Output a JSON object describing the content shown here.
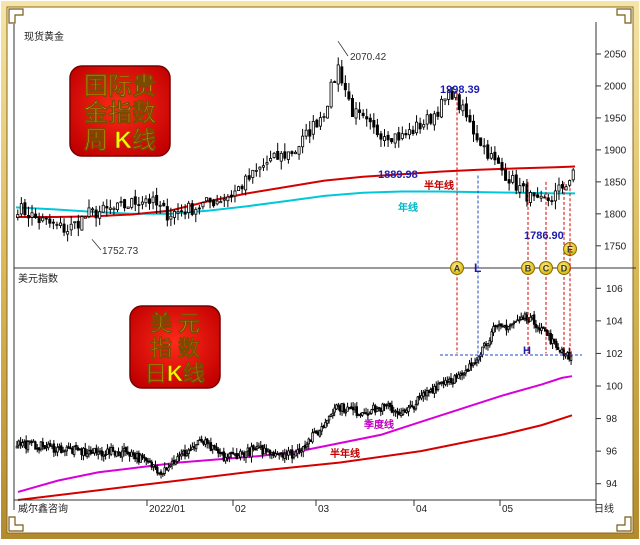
{
  "chart_data": [
    {
      "type": "candlestick",
      "title": "现货黄金",
      "badge": [
        "国际贵",
        "金指数",
        "周 K线"
      ],
      "ylim": [
        1720,
        2100
      ],
      "y_ticks": [
        1750,
        1800,
        1850,
        1900,
        1950,
        2000,
        2050
      ],
      "annotations": {
        "high": "2070.42",
        "low": "1752.73",
        "peak_b": "1998.39",
        "mid": "1889.98",
        "bottom": "1786.90",
        "ma_half_year": "半年线",
        "ma_year": "年线"
      },
      "markers": [
        "A",
        "L",
        "B",
        "C",
        "D",
        "E"
      ],
      "half_year_ma": [
        [
          0,
          1795
        ],
        [
          10,
          1795
        ],
        [
          20,
          1796
        ],
        [
          30,
          1799
        ],
        [
          40,
          1805
        ],
        [
          50,
          1820
        ],
        [
          60,
          1832
        ],
        [
          70,
          1842
        ],
        [
          80,
          1852
        ],
        [
          90,
          1858
        ],
        [
          100,
          1862
        ],
        [
          110,
          1866
        ],
        [
          120,
          1869
        ],
        [
          130,
          1871
        ],
        [
          140,
          1873
        ],
        [
          145,
          1874
        ]
      ],
      "year_ma": [
        [
          0,
          1810
        ],
        [
          10,
          1807
        ],
        [
          20,
          1803
        ],
        [
          30,
          1800
        ],
        [
          40,
          1800
        ],
        [
          50,
          1805
        ],
        [
          60,
          1812
        ],
        [
          70,
          1820
        ],
        [
          80,
          1828
        ],
        [
          90,
          1833
        ],
        [
          100,
          1835
        ],
        [
          110,
          1835
        ],
        [
          120,
          1834
        ],
        [
          130,
          1833
        ],
        [
          140,
          1832
        ],
        [
          145,
          1832
        ]
      ]
    },
    {
      "type": "candlestick",
      "title": "美元指数",
      "badge": [
        "美 元",
        "指 数",
        "日K线"
      ],
      "ylim": [
        93,
        107
      ],
      "y_ticks": [
        94,
        96,
        98,
        100,
        102,
        104,
        106
      ],
      "x_ticks": [
        "威尔鑫咨询",
        "2022/01",
        "02",
        "03",
        "04",
        "05"
      ],
      "period": "日线",
      "annotations": {
        "level": "H",
        "ma_quarter": "季度线",
        "ma_half_year": "半年线"
      },
      "quarter_ma": [
        [
          0,
          93.5
        ],
        [
          20,
          94.2
        ],
        [
          40,
          94.7
        ],
        [
          60,
          95.0
        ],
        [
          80,
          95.3
        ],
        [
          100,
          95.5
        ],
        [
          120,
          95.7
        ],
        [
          140,
          96.0
        ],
        [
          160,
          96.5
        ],
        [
          180,
          97.0
        ],
        [
          200,
          97.8
        ],
        [
          220,
          98.6
        ],
        [
          240,
          99.4
        ],
        [
          260,
          100.1
        ],
        [
          270,
          100.5
        ],
        [
          275,
          100.6
        ]
      ],
      "half_year_ma": [
        [
          0,
          93.0
        ],
        [
          40,
          93.6
        ],
        [
          80,
          94.2
        ],
        [
          120,
          94.8
        ],
        [
          160,
          95.3
        ],
        [
          200,
          96.0
        ],
        [
          240,
          97.0
        ],
        [
          260,
          97.6
        ],
        [
          275,
          98.2
        ]
      ]
    }
  ]
}
